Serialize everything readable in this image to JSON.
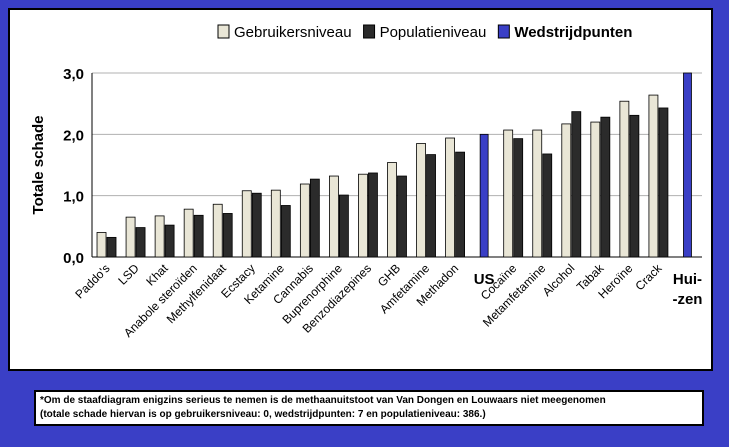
{
  "chart_data": {
    "type": "bar",
    "ylabel": "Totale schade",
    "ylim": [
      0,
      3
    ],
    "yticks": [
      "0,0",
      "1,0",
      "2,0",
      "3,0"
    ],
    "grid": "horizontal",
    "legend_position": "top",
    "categories": [
      "Paddo's",
      "LSD",
      "Khat",
      "Anabole steroïden",
      "Methylfenidaat",
      "Ecstacy",
      "Ketamine",
      "Cannabis",
      "Buprenorphine",
      "Benzodiazepines",
      "GHB",
      "Amfetamine",
      "Methadon",
      "US",
      "Cocaïne",
      "Metamfetamine",
      "Alcohol",
      "Tabak",
      "Heroïne",
      "Crack",
      "Hui-\n-zen"
    ],
    "series": [
      {
        "name": "Gebruikersniveau",
        "color": "#e9e6d6",
        "values": [
          0.4,
          0.65,
          0.67,
          0.78,
          0.86,
          1.08,
          1.09,
          1.19,
          1.32,
          1.35,
          1.54,
          1.85,
          1.94,
          null,
          2.07,
          2.07,
          2.17,
          2.2,
          2.54,
          2.64,
          null
        ]
      },
      {
        "name": "Populatieniveau",
        "color": "#2b2b2b",
        "values": [
          0.32,
          0.48,
          0.52,
          0.68,
          0.71,
          1.04,
          0.84,
          1.27,
          1.01,
          1.37,
          1.32,
          1.67,
          1.71,
          null,
          1.93,
          1.68,
          2.37,
          2.28,
          2.31,
          2.43,
          null
        ]
      },
      {
        "name": "Wedstrijdpunten",
        "color": "#3a3fc6",
        "values": [
          null,
          null,
          null,
          null,
          null,
          null,
          null,
          null,
          null,
          null,
          null,
          null,
          null,
          2.0,
          null,
          null,
          null,
          null,
          null,
          null,
          3.0
        ]
      }
    ]
  },
  "footnote": {
    "line1": "*Om de staafdiagram enigzins serieus te nemen is de methaanuitstoot van Van Dongen en Louwaars niet meegenomen",
    "line2": "(totale schade hiervan is op gebruikersniveau: 0, wedstrijdpunten: 7 en populatieniveau: 386.)"
  }
}
